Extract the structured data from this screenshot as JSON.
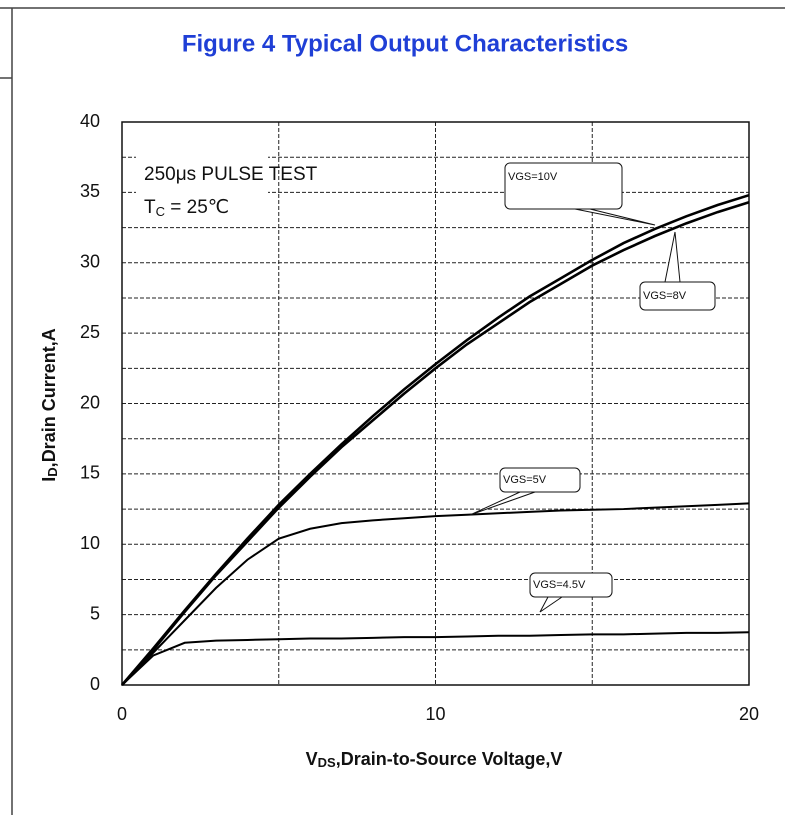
{
  "chart_data": {
    "type": "line",
    "title": "Figure 4 Typical Output Characteristics",
    "x_label": [
      "V",
      "DS",
      ",Drain-to-Source Voltage,V"
    ],
    "y_label": [
      "I",
      "D",
      ",Drain Current,A"
    ],
    "annotation": {
      "line1": "250μs PULSE TEST",
      "line2": [
        "T",
        "C",
        " = 25℃"
      ]
    },
    "x": [
      0,
      1,
      2,
      3,
      4,
      5,
      6,
      7,
      8,
      9,
      10,
      11,
      12,
      13,
      14,
      15,
      16,
      17,
      18,
      19,
      20
    ],
    "series": [
      {
        "name": "VGS=10V",
        "color": "#000000",
        "values": [
          0,
          2.6,
          5.3,
          7.9,
          10.4,
          12.8,
          15,
          17.1,
          19.1,
          21,
          22.8,
          24.5,
          26.1,
          27.6,
          28.9,
          30.2,
          31.4,
          32.4,
          33.3,
          34.1,
          34.8
        ]
      },
      {
        "name": "VGS=8V",
        "color": "#000000",
        "values": [
          0,
          2.5,
          5.2,
          7.8,
          10.2,
          12.6,
          14.8,
          16.9,
          18.8,
          20.7,
          22.5,
          24.2,
          25.7,
          27.2,
          28.5,
          29.8,
          30.9,
          31.9,
          32.8,
          33.6,
          34.3
        ]
      },
      {
        "name": "VGS=5V",
        "color": "#000000",
        "values": [
          0,
          2.3,
          4.6,
          6.9,
          8.9,
          10.4,
          11.1,
          11.5,
          11.7,
          11.85,
          12,
          12.1,
          12.2,
          12.3,
          12.4,
          12.45,
          12.5,
          12.6,
          12.7,
          12.8,
          12.9
        ]
      },
      {
        "name": "VGS=4.5V",
        "color": "#000000",
        "values": [
          0,
          2.1,
          3,
          3.15,
          3.2,
          3.25,
          3.3,
          3.3,
          3.35,
          3.4,
          3.4,
          3.45,
          3.5,
          3.5,
          3.55,
          3.6,
          3.6,
          3.65,
          3.7,
          3.7,
          3.75
        ]
      }
    ],
    "xlim": [
      0,
      20
    ],
    "xticks": [
      0,
      10,
      20
    ],
    "minor_xticks": [
      5,
      15
    ],
    "ylim": [
      0,
      40
    ],
    "yticks": [
      0,
      5,
      10,
      15,
      20,
      25,
      30,
      35,
      40
    ],
    "minor_yticks": [
      2.5,
      7.5,
      12.5,
      17.5,
      22.5,
      27.5,
      32.5,
      37.5
    ],
    "grid": true
  }
}
